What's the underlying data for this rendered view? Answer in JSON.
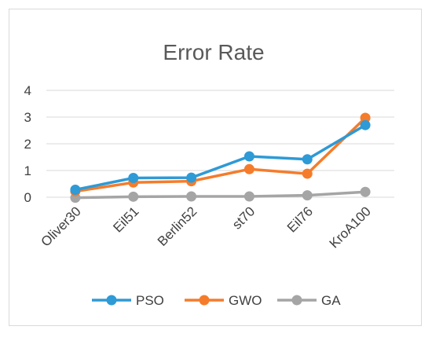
{
  "chart_data": {
    "type": "line",
    "title": "Error Rate",
    "xlabel": "",
    "ylabel": "",
    "categories": [
      "Oliver30",
      "Eil51",
      "Berlin52",
      "st70",
      "Eil76",
      "KroA100"
    ],
    "ylim": [
      0,
      4
    ],
    "yticks": [
      "0",
      "1",
      "2",
      "3",
      "4"
    ],
    "grid": true,
    "legend_position": "bottom",
    "series": [
      {
        "name": "PSO",
        "color": "#2e9ad6",
        "values": [
          0.28,
          0.72,
          0.73,
          1.53,
          1.42,
          2.7
        ]
      },
      {
        "name": "GWO",
        "color": "#f57c2b",
        "values": [
          0.22,
          0.55,
          0.6,
          1.05,
          0.88,
          2.97
        ]
      },
      {
        "name": "GA",
        "color": "#a5a5a5",
        "values": [
          -0.02,
          0.02,
          0.03,
          0.03,
          0.07,
          0.2
        ]
      }
    ]
  }
}
